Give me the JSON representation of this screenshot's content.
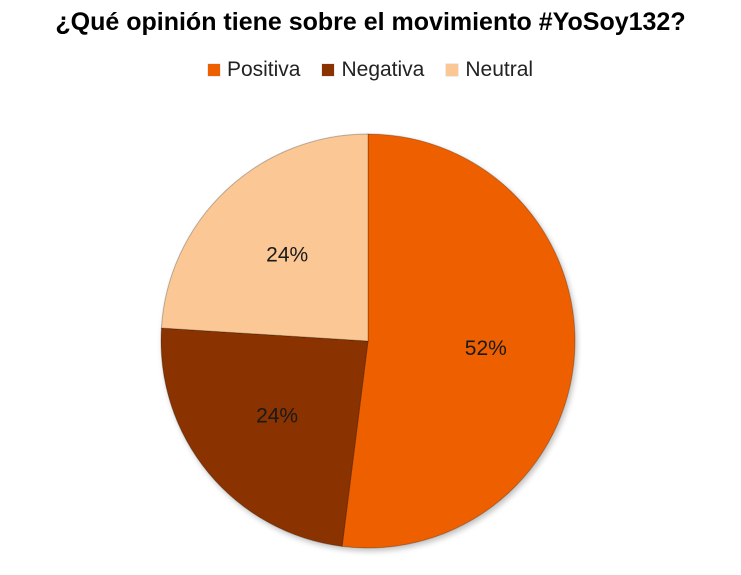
{
  "chart_data": {
    "type": "pie",
    "title": "¿Qué opinión tiene sobre el movimiento #YoSoy132?",
    "legend_position": "top",
    "categories": [
      "Positiva",
      "Negativa",
      "Neutral"
    ],
    "values": [
      52,
      24,
      24
    ],
    "value_labels": [
      "52%",
      "24%",
      "24%"
    ],
    "colors": [
      "#EE5F00",
      "#8A3300",
      "#FBC895"
    ],
    "start_at": "12 o'clock",
    "direction": "clockwise"
  }
}
